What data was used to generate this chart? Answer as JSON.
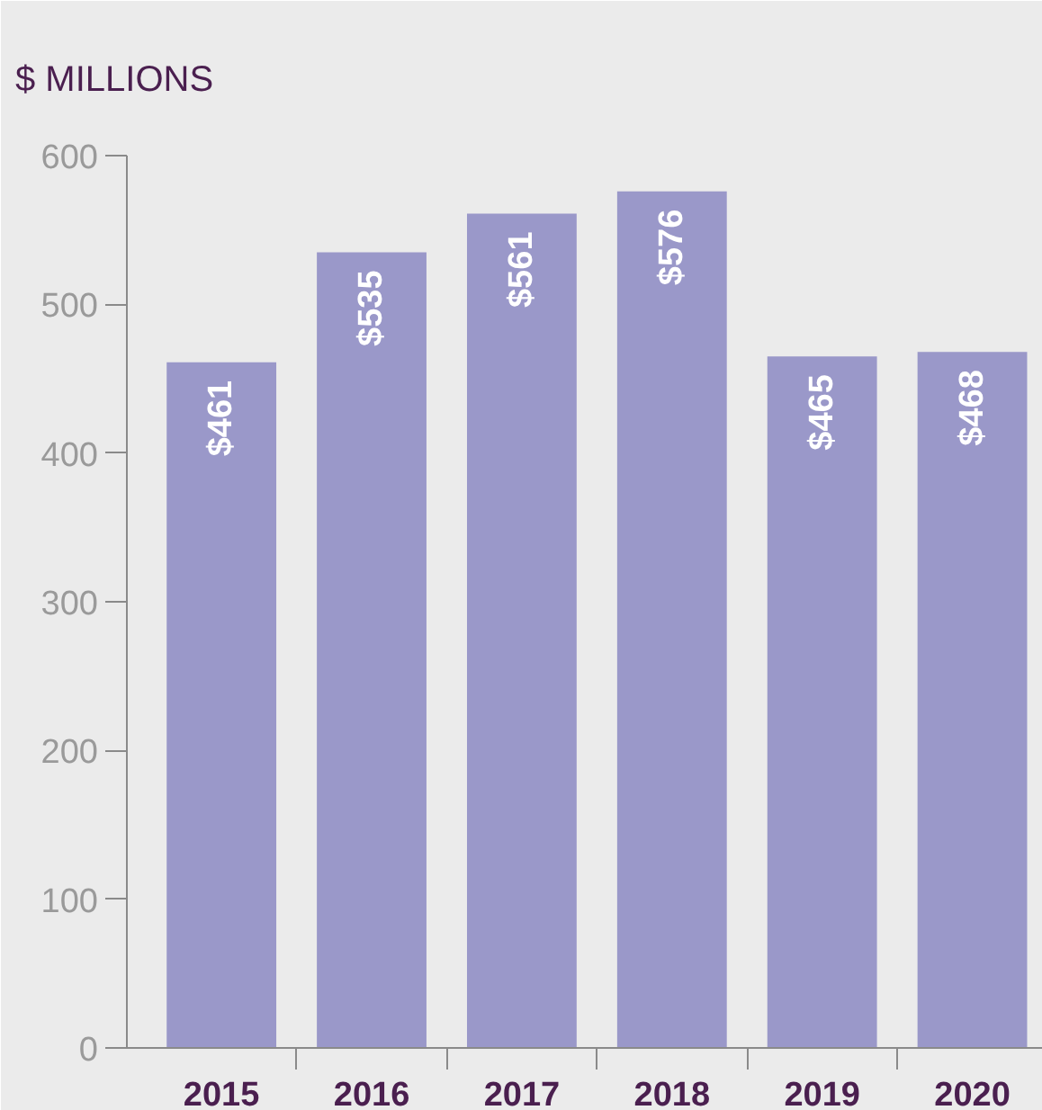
{
  "chart_data": {
    "type": "bar",
    "title": "$ MILLIONS",
    "categories": [
      "2015",
      "2016",
      "2017",
      "2018",
      "2019",
      "2020"
    ],
    "values": [
      461,
      535,
      561,
      576,
      465,
      468
    ],
    "value_labels": [
      "$461",
      "$535",
      "$561",
      "$576",
      "$465",
      "$468"
    ],
    "color": "#9a98c9",
    "ylim": [
      0,
      600
    ],
    "yticks": [
      0,
      100,
      200,
      300,
      400,
      500,
      600
    ],
    "grid": false
  }
}
